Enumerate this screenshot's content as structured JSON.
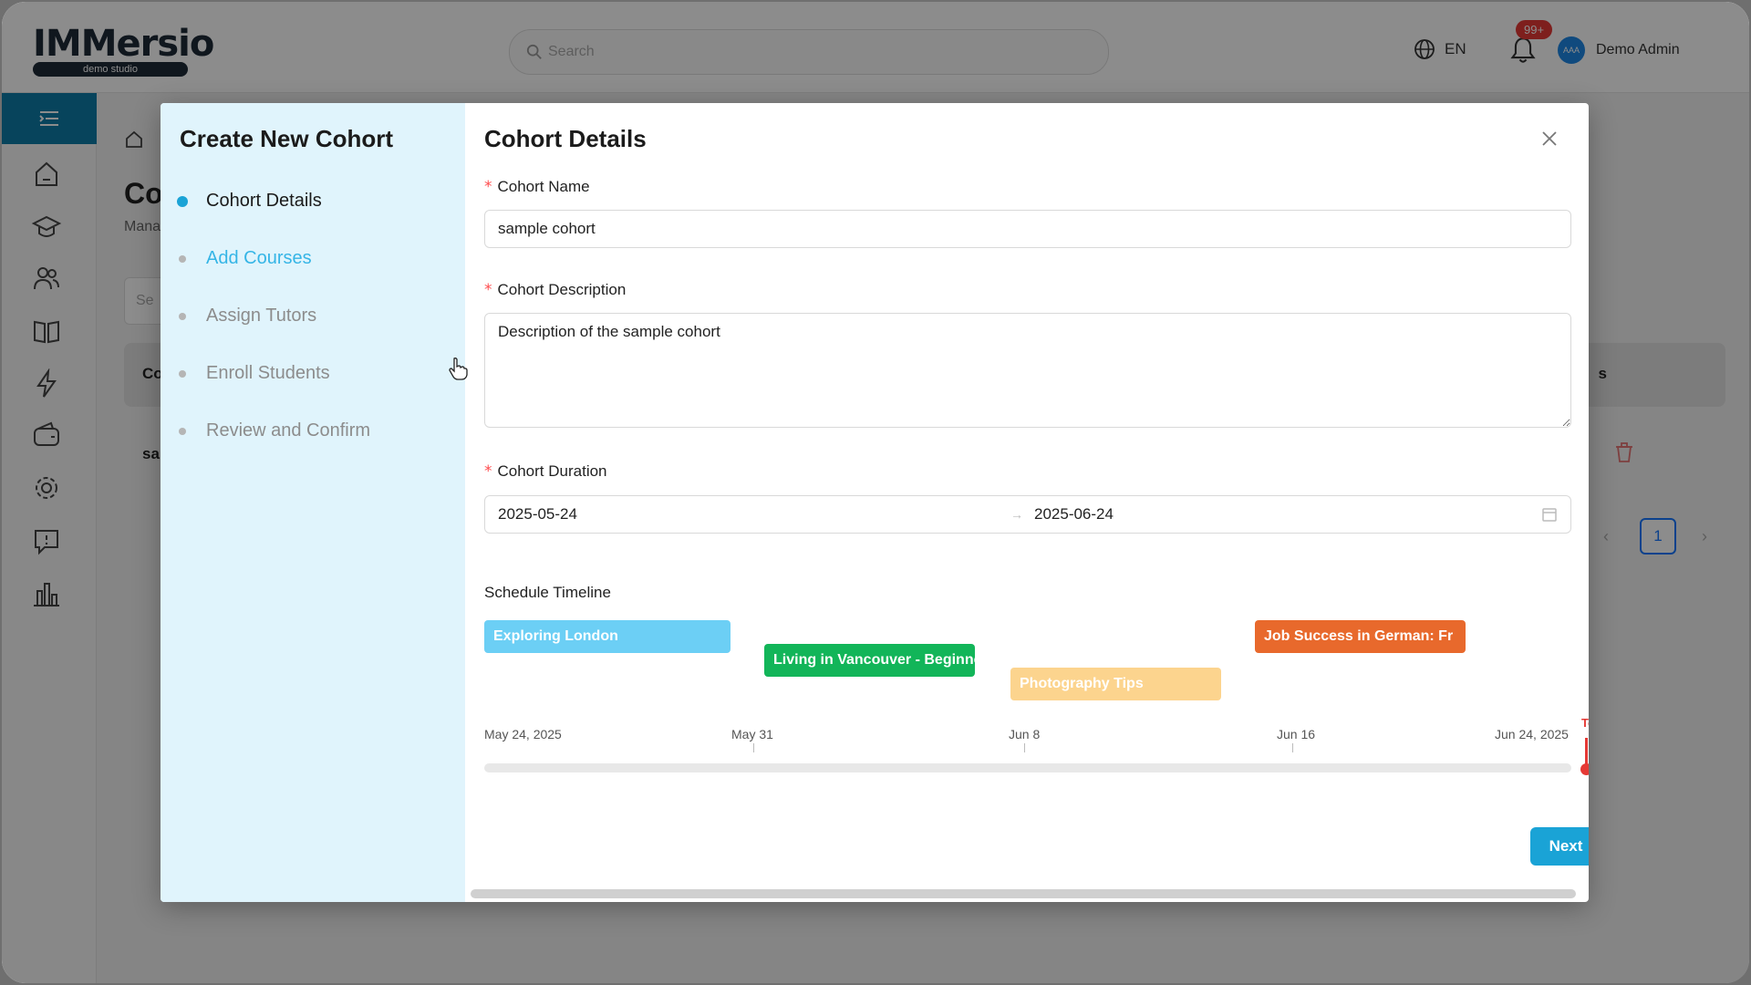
{
  "app": {
    "logo_text": "IMMersio",
    "logo_sub": "demo studio",
    "search_placeholder": "Search",
    "language": "EN",
    "notification_badge": "99+",
    "user_name": "Demo Admin",
    "avatar_text": "AAA"
  },
  "background": {
    "page_title": "Co",
    "page_subtitle": "Mana",
    "filter_placeholder": "Se",
    "table_col1": "Co",
    "table_col2": "s",
    "row1_text": "sa",
    "page_number": "1"
  },
  "modal": {
    "steps_title": "Create New Cohort",
    "steps": [
      {
        "label": "Cohort Details",
        "state": "active"
      },
      {
        "label": "Add Courses",
        "state": "hover"
      },
      {
        "label": "Assign Tutors",
        "state": "pending"
      },
      {
        "label": "Enroll Students",
        "state": "pending"
      },
      {
        "label": "Review and Confirm",
        "state": "pending"
      }
    ],
    "form_title": "Cohort Details",
    "name_label": "Cohort Name",
    "name_value": "sample cohort",
    "description_label": "Cohort Description",
    "description_value": "Description of the sample cohort",
    "duration_label": "Cohort Duration",
    "duration_start": "2025-05-24",
    "duration_end": "2025-06-24",
    "duration_arrow": "→",
    "schedule_label": "Schedule Timeline",
    "timeline": {
      "ticks": [
        "May 24, 2025",
        "May 31",
        "Jun 8",
        "Jun 16",
        "Jun 24, 2025"
      ],
      "today_label": "Today",
      "bars": [
        {
          "label": "Exploring London",
          "color": "#6ccff5"
        },
        {
          "label": "Living in Vancouver - Beginner",
          "color": "#12b559"
        },
        {
          "label": "Photography Tips",
          "color": "#fcd48e"
        },
        {
          "label": "Job Success in German: Fr",
          "color": "#e8692c"
        }
      ]
    },
    "next_label": "Next"
  }
}
